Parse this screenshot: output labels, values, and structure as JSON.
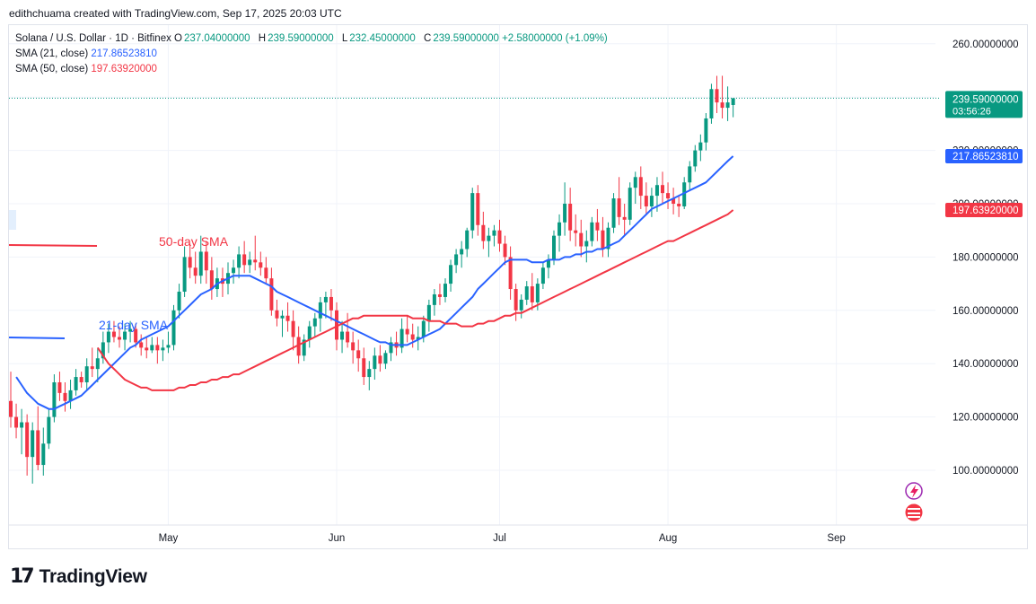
{
  "header": {
    "text": "edithchuama created with TradingView.com, Sep 17, 2025 20:03 UTC"
  },
  "legend": {
    "symbol": "Solana / U.S. Dollar · 1D · Bitfinex",
    "open_label": "O",
    "open": "237.04000000",
    "high_label": "H",
    "high": "239.59000000",
    "low_label": "L",
    "low": "232.45000000",
    "close_label": "C",
    "close": "239.59000000",
    "change": "+2.58000000 (+1.09%)",
    "sma21_label": "SMA (21, close)",
    "sma21_value": "217.86523810",
    "sma50_label": "SMA (50, close)",
    "sma50_value": "197.63920000"
  },
  "annotations": {
    "sma50_text": "50-day SMA",
    "sma21_text": "21-day SMA"
  },
  "price_tags": {
    "last_price": "239.59000000",
    "countdown": "03:56:26",
    "sma21": "217.86523810",
    "sma50": "197.63920000"
  },
  "colors": {
    "up": "#089981",
    "down": "#f23645",
    "sma21": "#2962ff",
    "sma50": "#f23645"
  },
  "logo": {
    "text": "TradingView"
  },
  "chart_data": {
    "type": "candlestick",
    "title": "Solana / U.S. Dollar · 1D · Bitfinex",
    "ylim": [
      80,
      270
    ],
    "y_ticks": [
      "100.00000000",
      "120.00000000",
      "140.00000000",
      "160.00000000",
      "180.00000000",
      "200.00000000",
      "220.00000000",
      "240.00000000",
      "260.00000000"
    ],
    "x_tick_labels": [
      {
        "label": "May",
        "index": 29
      },
      {
        "label": "Jun",
        "index": 60
      },
      {
        "label": "Jul",
        "index": 90
      },
      {
        "label": "Aug",
        "index": 121
      },
      {
        "label": "Sep",
        "index": 152
      }
    ],
    "candles": [
      [
        126,
        137,
        116,
        120
      ],
      [
        120,
        125,
        112,
        116
      ],
      [
        116,
        123,
        106,
        118
      ],
      [
        118,
        121,
        98,
        105
      ],
      [
        105,
        118,
        95,
        115
      ],
      [
        115,
        124,
        100,
        102
      ],
      [
        102,
        116,
        98,
        110
      ],
      [
        110,
        123,
        108,
        120
      ],
      [
        120,
        136,
        118,
        133
      ],
      [
        133,
        137,
        126,
        129
      ],
      [
        129,
        133,
        122,
        126
      ],
      [
        126,
        134,
        123,
        130
      ],
      [
        130,
        138,
        128,
        135
      ],
      [
        135,
        137,
        131,
        133
      ],
      [
        133,
        142,
        130,
        139
      ],
      [
        139,
        146,
        135,
        138
      ],
      [
        138,
        146,
        133,
        142
      ],
      [
        142,
        152,
        140,
        148
      ],
      [
        148,
        155,
        144,
        152
      ],
      [
        152,
        156,
        148,
        150
      ],
      [
        150,
        154,
        146,
        149
      ],
      [
        149,
        155,
        145,
        152
      ],
      [
        152,
        156,
        148,
        153
      ],
      [
        153,
        155,
        146,
        148
      ],
      [
        148,
        151,
        143,
        146
      ],
      [
        146,
        150,
        142,
        145
      ],
      [
        145,
        150,
        144,
        147
      ],
      [
        147,
        150,
        140,
        145
      ],
      [
        145,
        149,
        141,
        146
      ],
      [
        146,
        152,
        144,
        147
      ],
      [
        147,
        162,
        145,
        160
      ],
      [
        160,
        170,
        157,
        167
      ],
      [
        167,
        184,
        165,
        180
      ],
      [
        180,
        185,
        172,
        176
      ],
      [
        176,
        182,
        170,
        173
      ],
      [
        173,
        188,
        170,
        182
      ],
      [
        182,
        186,
        170,
        175
      ],
      [
        175,
        180,
        164,
        168
      ],
      [
        168,
        176,
        165,
        172
      ],
      [
        172,
        176,
        165,
        170
      ],
      [
        170,
        178,
        166,
        174
      ],
      [
        174,
        179,
        170,
        176
      ],
      [
        176,
        184,
        172,
        181
      ],
      [
        181,
        186,
        174,
        177
      ],
      [
        177,
        182,
        174,
        179
      ],
      [
        179,
        188,
        175,
        178
      ],
      [
        178,
        182,
        173,
        176
      ],
      [
        176,
        180,
        170,
        172
      ],
      [
        172,
        176,
        158,
        160
      ],
      [
        160,
        164,
        154,
        157
      ],
      [
        157,
        160,
        150,
        158
      ],
      [
        158,
        163,
        152,
        156
      ],
      [
        156,
        160,
        145,
        150
      ],
      [
        150,
        154,
        140,
        143
      ],
      [
        143,
        151,
        141,
        149
      ],
      [
        149,
        156,
        146,
        154
      ],
      [
        154,
        159,
        150,
        157
      ],
      [
        157,
        165,
        152,
        163
      ],
      [
        163,
        167,
        157,
        165
      ],
      [
        165,
        168,
        156,
        160
      ],
      [
        160,
        163,
        145,
        149
      ],
      [
        149,
        156,
        144,
        152
      ],
      [
        152,
        159,
        146,
        148
      ],
      [
        148,
        152,
        140,
        145
      ],
      [
        145,
        149,
        137,
        142
      ],
      [
        142,
        146,
        132,
        135
      ],
      [
        135,
        141,
        130,
        138
      ],
      [
        138,
        146,
        134,
        143
      ],
      [
        143,
        147,
        137,
        140
      ],
      [
        140,
        145,
        138,
        144
      ],
      [
        144,
        150,
        141,
        148
      ],
      [
        148,
        152,
        143,
        146
      ],
      [
        146,
        157,
        144,
        153
      ],
      [
        153,
        158,
        148,
        151
      ],
      [
        151,
        155,
        146,
        149
      ],
      [
        149,
        154,
        145,
        150
      ],
      [
        150,
        158,
        148,
        156
      ],
      [
        156,
        164,
        152,
        162
      ],
      [
        162,
        168,
        158,
        166
      ],
      [
        166,
        170,
        162,
        165
      ],
      [
        165,
        172,
        163,
        170
      ],
      [
        170,
        179,
        167,
        177
      ],
      [
        177,
        183,
        174,
        181
      ],
      [
        181,
        186,
        176,
        183
      ],
      [
        183,
        191,
        180,
        190
      ],
      [
        190,
        206,
        187,
        204
      ],
      [
        204,
        207,
        188,
        192
      ],
      [
        192,
        197,
        183,
        186
      ],
      [
        186,
        191,
        180,
        188
      ],
      [
        188,
        192,
        184,
        190
      ],
      [
        190,
        194,
        182,
        185
      ],
      [
        185,
        188,
        177,
        180
      ],
      [
        180,
        184,
        164,
        168
      ],
      [
        168,
        170,
        156,
        160
      ],
      [
        160,
        166,
        157,
        164
      ],
      [
        164,
        171,
        162,
        169
      ],
      [
        169,
        174,
        160,
        163
      ],
      [
        163,
        172,
        160,
        170
      ],
      [
        170,
        178,
        168,
        176
      ],
      [
        176,
        181,
        172,
        179
      ],
      [
        179,
        190,
        177,
        188
      ],
      [
        188,
        196,
        182,
        193
      ],
      [
        193,
        208,
        188,
        200
      ],
      [
        200,
        206,
        186,
        190
      ],
      [
        190,
        196,
        184,
        189
      ],
      [
        189,
        194,
        180,
        184
      ],
      [
        184,
        190,
        178,
        186
      ],
      [
        186,
        195,
        184,
        193
      ],
      [
        193,
        198,
        186,
        190
      ],
      [
        190,
        195,
        180,
        183
      ],
      [
        183,
        193,
        180,
        191
      ],
      [
        191,
        204,
        189,
        202
      ],
      [
        202,
        210,
        192,
        195
      ],
      [
        195,
        200,
        188,
        194
      ],
      [
        194,
        208,
        192,
        206
      ],
      [
        206,
        212,
        200,
        210
      ],
      [
        210,
        214,
        198,
        203
      ],
      [
        203,
        208,
        196,
        199
      ],
      [
        199,
        206,
        195,
        203
      ],
      [
        203,
        210,
        197,
        207
      ],
      [
        207,
        212,
        200,
        204
      ],
      [
        204,
        208,
        198,
        202
      ],
      [
        202,
        206,
        196,
        200
      ],
      [
        200,
        203,
        195,
        199
      ],
      [
        199,
        210,
        198,
        208
      ],
      [
        208,
        216,
        205,
        214
      ],
      [
        214,
        222,
        212,
        220
      ],
      [
        220,
        226,
        216,
        223
      ],
      [
        223,
        234,
        220,
        232
      ],
      [
        232,
        245,
        230,
        243
      ],
      [
        243,
        248,
        234,
        238
      ],
      [
        238,
        248,
        232,
        236
      ],
      [
        236,
        244,
        231,
        238
      ],
      [
        237.04,
        239.59,
        232.45,
        239.59
      ]
    ],
    "series": [
      {
        "name": "SMA (21, close)",
        "values": [
          135,
          132,
          129,
          127,
          125,
          124,
          123,
          123,
          124,
          125,
          126,
          127,
          128,
          130,
          132,
          134,
          136,
          138,
          140,
          142,
          144,
          146,
          147,
          149,
          150,
          151,
          152,
          153,
          154,
          156,
          158,
          160,
          162,
          164,
          166,
          167,
          168,
          170,
          171,
          172,
          173,
          173,
          173,
          173,
          172,
          171,
          170,
          169,
          167,
          166,
          165,
          164,
          163,
          162,
          161,
          160,
          159,
          158,
          157,
          156,
          155,
          154,
          153,
          152,
          151,
          150,
          149,
          148,
          148,
          147,
          147,
          147,
          147,
          148,
          149,
          150,
          151,
          152,
          153,
          155,
          157,
          159,
          161,
          163,
          165,
          168,
          170,
          172,
          174,
          176,
          178,
          179,
          179,
          179,
          179,
          178,
          178,
          178,
          179,
          179,
          179,
          180,
          180,
          181,
          181,
          182,
          182,
          183,
          183,
          184,
          185,
          186,
          188,
          190,
          192,
          194,
          196,
          198,
          199,
          200,
          201,
          202,
          203,
          204,
          205,
          206,
          207,
          208,
          210,
          212,
          214,
          216,
          217.86
        ]
      },
      {
        "name": "SMA (50, close)",
        "values": [
          146,
          143,
          140,
          138,
          136,
          134,
          133,
          132,
          131,
          131,
          130,
          130,
          130,
          130,
          130,
          131,
          131,
          132,
          132,
          133,
          133,
          134,
          134,
          135,
          135,
          136,
          136,
          137,
          138,
          139,
          140,
          141,
          142,
          143,
          144,
          145,
          146,
          147,
          148,
          149,
          150,
          151,
          152,
          153,
          154,
          155,
          156,
          157,
          157,
          158,
          158,
          158,
          158,
          158,
          158,
          158,
          158,
          158,
          157,
          157,
          157,
          156,
          156,
          156,
          155,
          155,
          155,
          154,
          154,
          154,
          155,
          155,
          156,
          156,
          157,
          158,
          158,
          159,
          159,
          160,
          161,
          162,
          163,
          164,
          165,
          166,
          167,
          168,
          169,
          170,
          171,
          172,
          173,
          174,
          175,
          176,
          177,
          178,
          179,
          180,
          181,
          182,
          183,
          184,
          185,
          186,
          186,
          187,
          188,
          189,
          190,
          191,
          192,
          193,
          194,
          195,
          196,
          197.64
        ]
      }
    ]
  }
}
